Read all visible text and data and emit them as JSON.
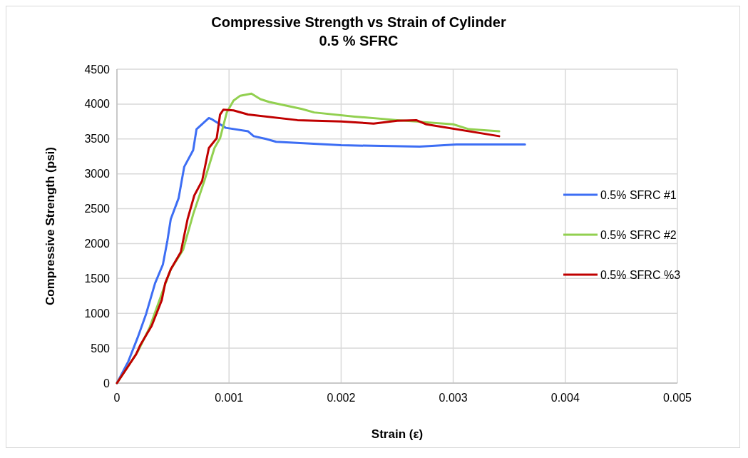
{
  "chart_data": {
    "type": "line",
    "title": "Compressive Strength vs Strain of Cylinder",
    "subtitle": "0.5 % SFRC",
    "xlabel": "Strain (ε)",
    "ylabel": "Compressive Strength (psi)",
    "xlim": [
      0,
      0.005
    ],
    "xticks": [
      0,
      0.001,
      0.002,
      0.003,
      0.004,
      0.005
    ],
    "ylim": [
      0,
      4500
    ],
    "yticks": [
      0,
      500,
      1000,
      1500,
      2000,
      2500,
      3000,
      3500,
      4000,
      4500
    ],
    "grid": true,
    "legend": "right",
    "marker": "none",
    "line_style": "solid",
    "series": [
      {
        "name": "0.5% SFRC #1",
        "color": "#3d6ef4",
        "x": [
          0,
          0.0001,
          0.000185,
          0.00026,
          0.00034,
          0.00041,
          0.00045,
          0.00048,
          0.00055,
          0.0006,
          0.00068,
          0.00071,
          0.00082,
          0.00085,
          0.00097,
          0.00117,
          0.00122,
          0.00133,
          0.00142,
          0.002,
          0.0027,
          0.00303,
          0.00364
        ],
        "values": [
          0,
          306,
          653,
          990,
          1430,
          1700,
          2040,
          2350,
          2650,
          3100,
          3340,
          3640,
          3800,
          3780,
          3660,
          3610,
          3540,
          3500,
          3460,
          3410,
          3390,
          3420,
          3420
        ]
      },
      {
        "name": "0.5% SFRC #2",
        "color": "#92d050",
        "x": [
          0,
          0.000185,
          0.00029,
          0.00042,
          0.00048,
          0.00059,
          0.00068,
          0.00078,
          0.00087,
          0.00092,
          0.00098,
          0.00104,
          0.0011,
          0.0012,
          0.00128,
          0.00136,
          0.00165,
          0.00176,
          0.00212,
          0.0025,
          0.003,
          0.00314,
          0.00341
        ],
        "values": [
          0,
          450,
          790,
          1370,
          1630,
          1910,
          2420,
          2900,
          3370,
          3510,
          3880,
          4050,
          4120,
          4150,
          4070,
          4030,
          3930,
          3880,
          3820,
          3770,
          3710,
          3640,
          3610
        ]
      },
      {
        "name": "0.5% SFRC %3",
        "color": "#c00000",
        "x": [
          0,
          0.00017,
          0.00021,
          0.00031,
          0.0004,
          0.00043,
          0.00048,
          0.00057,
          0.00063,
          0.00069,
          0.00076,
          0.00082,
          0.00089,
          0.00092,
          0.00095,
          0.00104,
          0.00117,
          0.00161,
          0.002,
          0.00229,
          0.0025,
          0.00267,
          0.00276,
          0.00341
        ],
        "values": [
          0,
          410,
          550,
          820,
          1190,
          1430,
          1630,
          1880,
          2350,
          2690,
          2900,
          3370,
          3510,
          3850,
          3920,
          3910,
          3850,
          3770,
          3750,
          3720,
          3760,
          3770,
          3710,
          3540
        ]
      }
    ]
  }
}
